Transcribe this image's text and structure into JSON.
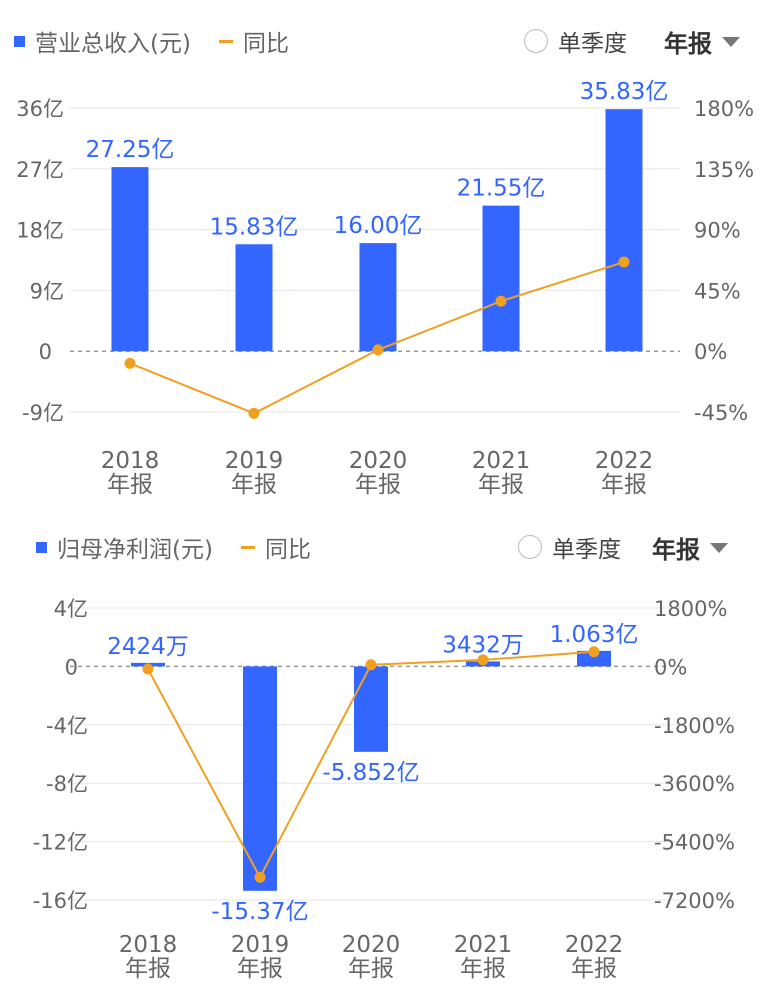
{
  "chart_data": [
    {
      "type": "bar",
      "legend": {
        "bar": "营业总收入(元)",
        "line": "同比"
      },
      "controls": {
        "season_label": "单季度",
        "report_label": "年报"
      },
      "categories": [
        "2018",
        "2019",
        "2020",
        "2021",
        "2022"
      ],
      "category_sub": "年报",
      "series": [
        {
          "name": "营业总收入(元)",
          "kind": "bar",
          "axis": "left",
          "values": [
            27.25,
            15.83,
            16.0,
            21.55,
            35.83
          ],
          "labels": [
            "27.25亿",
            "15.83亿",
            "16.00亿",
            "21.55亿",
            "35.83亿"
          ]
        },
        {
          "name": "同比",
          "kind": "line",
          "axis": "right",
          "values": [
            -9,
            -46,
            1,
            37,
            66
          ]
        }
      ],
      "left_axis": {
        "range": [
          -9,
          36
        ],
        "ticks": [
          36,
          27,
          18,
          9,
          0,
          -9
        ],
        "tick_labels": [
          "36亿",
          "27亿",
          "18亿",
          "9亿",
          "0",
          "-9亿"
        ]
      },
      "right_axis": {
        "range": [
          -45,
          180
        ],
        "ticks": [
          180,
          135,
          90,
          45,
          0,
          -45
        ],
        "tick_labels": [
          "180%",
          "135%",
          "90%",
          "45%",
          "0%",
          "-45%"
        ]
      },
      "colors": {
        "bar": "#3366ff",
        "line": "#f0a020",
        "label": "#3366ff"
      }
    },
    {
      "type": "bar",
      "legend": {
        "bar": "归母净利润(元)",
        "line": "同比"
      },
      "controls": {
        "season_label": "单季度",
        "report_label": "年报"
      },
      "categories": [
        "2018",
        "2019",
        "2020",
        "2021",
        "2022"
      ],
      "category_sub": "年报",
      "series": [
        {
          "name": "归母净利润(元)",
          "kind": "bar",
          "axis": "left",
          "values": [
            0.2424,
            -15.37,
            -5.852,
            0.3432,
            1.063
          ],
          "labels": [
            "2424万",
            "-15.37亿",
            "-5.852亿",
            "3432万",
            "1.063亿"
          ]
        },
        {
          "name": "同比",
          "kind": "line",
          "axis": "right",
          "values": [
            -80,
            -6500,
            50,
            200,
            450
          ]
        }
      ],
      "left_axis": {
        "range": [
          -16,
          4
        ],
        "ticks": [
          4,
          0,
          -4,
          -8,
          -12,
          -16
        ],
        "tick_labels": [
          "4亿",
          "0",
          "-4亿",
          "-8亿",
          "-12亿",
          "-16亿"
        ]
      },
      "right_axis": {
        "range": [
          -7200,
          1800
        ],
        "ticks": [
          1800,
          0,
          -1800,
          -3600,
          -5400,
          -7200
        ],
        "tick_labels": [
          "1800%",
          "0%",
          "-1800%",
          "-3600%",
          "-5400%",
          "-7200%"
        ]
      },
      "colors": {
        "bar": "#3366ff",
        "line": "#f0a020",
        "label": "#3366ff"
      }
    }
  ]
}
